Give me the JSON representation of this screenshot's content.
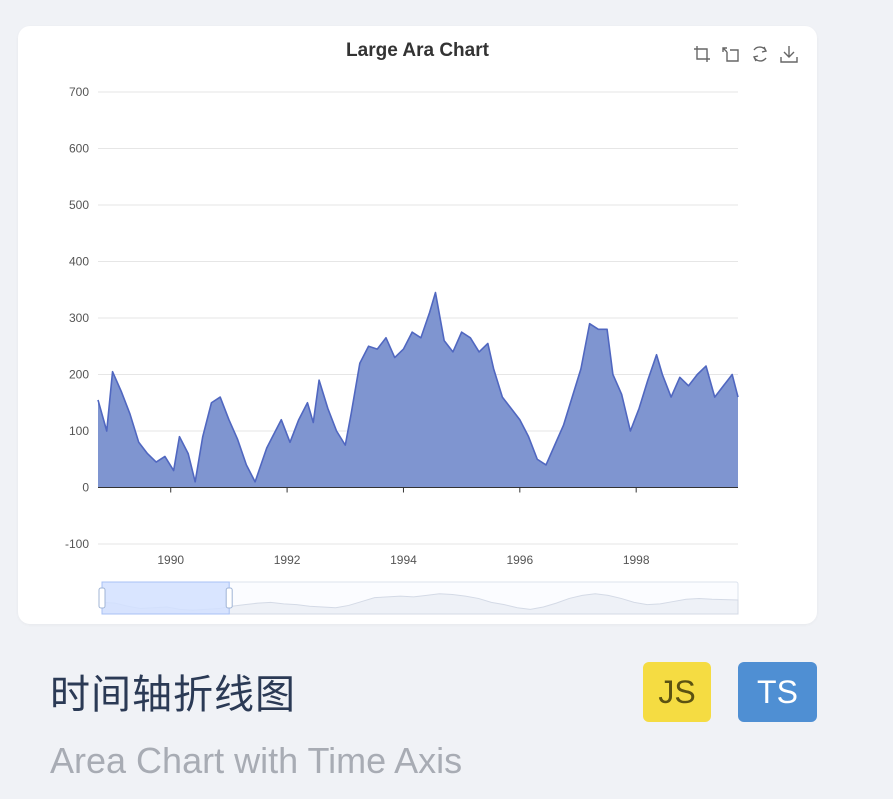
{
  "colors": {
    "page_bg": "#f0f2f6",
    "card_bg": "#ffffff",
    "area_fill": "#7f95d0",
    "line": "#5067c0",
    "grid": "#e6e6e6",
    "slider_fill": "#d2e0ff",
    "js_badge": "#f5dc42",
    "ts_badge": "#4f8fd3"
  },
  "toolbox": {
    "icons": [
      "zoom-icon",
      "zoom-reset-icon",
      "restore-icon",
      "save-image-icon"
    ]
  },
  "chart_data": {
    "type": "area",
    "title": "Large Ara Chart",
    "xlabel": "",
    "ylabel": "",
    "xlim": [
      1988.75,
      1999.75
    ],
    "ylim": [
      -100,
      700
    ],
    "y_ticks": [
      -100,
      0,
      100,
      200,
      300,
      400,
      500,
      600,
      700
    ],
    "x_ticks": [
      1990,
      1992,
      1994,
      1996,
      1998
    ],
    "x_tick_labels": [
      "1990",
      "1992",
      "1994",
      "1996",
      "1998"
    ],
    "grid": true,
    "legend": "none",
    "series": [
      {
        "x": [
          1988.75,
          1988.9,
          1989.0,
          1989.15,
          1989.3,
          1989.45,
          1989.6,
          1989.75,
          1989.9,
          1990.05,
          1990.15,
          1990.3,
          1990.42,
          1990.55,
          1990.7,
          1990.85,
          1991.0,
          1991.15,
          1991.3,
          1991.45,
          1991.55,
          1991.65,
          1991.75,
          1991.9,
          1992.05,
          1992.2,
          1992.35,
          1992.45,
          1992.55,
          1992.7,
          1992.85,
          1993.0,
          1993.1,
          1993.25,
          1993.4,
          1993.55,
          1993.7,
          1993.85,
          1994.0,
          1994.15,
          1994.3,
          1994.45,
          1994.55,
          1994.7,
          1994.85,
          1995.0,
          1995.15,
          1995.3,
          1995.45,
          1995.55,
          1995.7,
          1995.85,
          1996.0,
          1996.15,
          1996.3,
          1996.45,
          1996.6,
          1996.75,
          1996.9,
          1997.05,
          1997.2,
          1997.35,
          1997.5,
          1997.6,
          1997.75,
          1997.9,
          1998.05,
          1998.2,
          1998.35,
          1998.45,
          1998.6,
          1998.75,
          1998.9,
          1999.05,
          1999.2,
          1999.35,
          1999.5,
          1999.65,
          1999.75
        ],
        "values": [
          155,
          100,
          205,
          170,
          130,
          80,
          60,
          45,
          55,
          30,
          90,
          60,
          10,
          90,
          150,
          160,
          120,
          85,
          40,
          10,
          40,
          70,
          90,
          120,
          80,
          120,
          150,
          115,
          190,
          140,
          100,
          75,
          130,
          220,
          250,
          245,
          265,
          230,
          245,
          275,
          265,
          310,
          345,
          260,
          240,
          275,
          265,
          240,
          255,
          210,
          160,
          140,
          120,
          90,
          50,
          40,
          75,
          110,
          160,
          210,
          290,
          280,
          280,
          200,
          165,
          100,
          140,
          190,
          235,
          200,
          160,
          195,
          180,
          200,
          215,
          160,
          180,
          200,
          160
        ],
        "slider_preview": [
          150,
          140,
          100,
          70,
          80,
          90,
          60,
          50,
          60,
          70,
          100,
          120,
          140,
          150,
          130,
          120,
          100,
          90,
          80,
          110,
          160,
          210,
          220,
          230,
          220,
          240,
          260,
          250,
          230,
          200,
          150,
          120,
          80,
          60,
          90,
          140,
          200,
          240,
          260,
          240,
          200,
          150,
          120,
          130,
          160,
          190,
          200,
          190,
          185,
          180
        ]
      }
    ],
    "datazoom": {
      "start": 0,
      "end": 20
    }
  },
  "footer": {
    "title": "时间轴折线图",
    "subtitle": "Area Chart with Time Axis",
    "badges": [
      "JS",
      "TS"
    ]
  }
}
